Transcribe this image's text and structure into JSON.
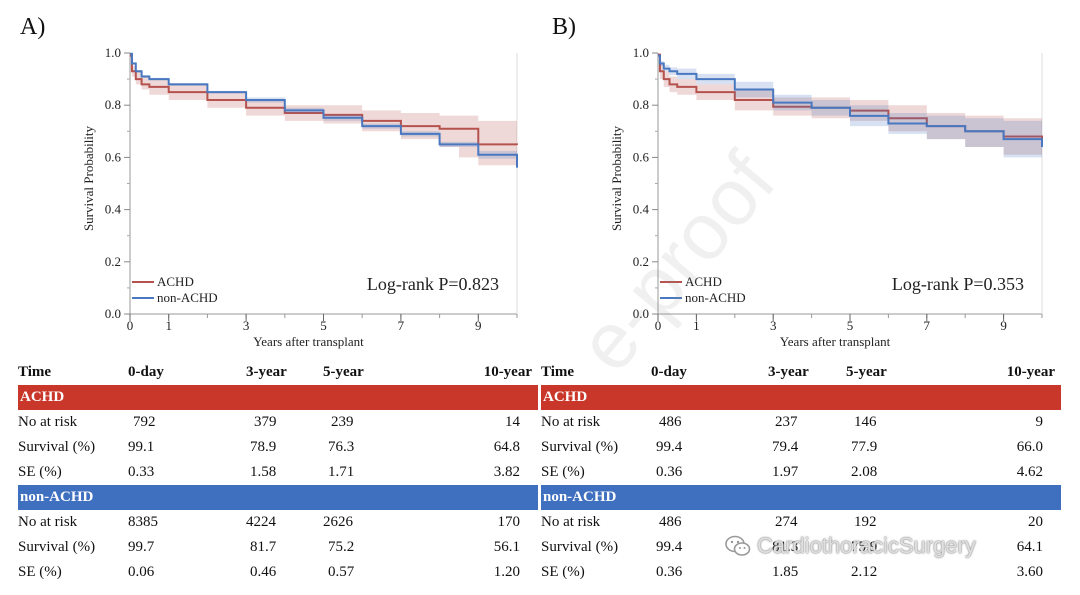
{
  "panels": [
    {
      "label": "A)",
      "chart_data": {
        "type": "line",
        "title": "",
        "xlabel": "Years after transplant",
        "ylabel": "Survival Probability",
        "xlim": [
          0,
          10
        ],
        "ylim": [
          0,
          1.0
        ],
        "xticks": [
          0,
          1,
          3,
          5,
          7,
          9
        ],
        "yticks": [
          0.0,
          0.2,
          0.4,
          0.6,
          0.8,
          1.0
        ],
        "ytick_labels": [
          "0.0",
          "0.2",
          "0.4",
          "0.6",
          "0.8",
          "1.0"
        ],
        "annotation": "Log-rank P=0.823",
        "legend": [
          "ACHD",
          "non-ACHD"
        ],
        "legend_position": "bottom-left",
        "series": [
          {
            "name": "ACHD",
            "color": "#b5524e",
            "x": [
              0,
              0.05,
              0.15,
              0.3,
              0.5,
              1,
              2,
              3,
              4,
              5,
              6,
              7,
              8,
              8.5,
              9,
              10
            ],
            "y": [
              0.99,
              0.93,
              0.9,
              0.88,
              0.87,
              0.85,
              0.82,
              0.79,
              0.77,
              0.763,
              0.74,
              0.72,
              0.71,
              0.71,
              0.65,
              0.648
            ],
            "lower": [
              0.99,
              0.91,
              0.88,
              0.86,
              0.84,
              0.82,
              0.79,
              0.76,
              0.74,
              0.73,
              0.7,
              0.67,
              0.64,
              0.6,
              0.57,
              0.57
            ],
            "upper": [
              0.99,
              0.95,
              0.93,
              0.91,
              0.9,
              0.88,
              0.85,
              0.82,
              0.8,
              0.8,
              0.78,
              0.77,
              0.76,
              0.76,
              0.74,
              0.74
            ]
          },
          {
            "name": "non-ACHD",
            "color": "#4a78c0",
            "x": [
              0,
              0.05,
              0.15,
              0.3,
              0.5,
              1,
              2,
              3,
              4,
              5,
              6,
              7,
              8,
              9,
              10
            ],
            "y": [
              0.997,
              0.96,
              0.93,
              0.91,
              0.9,
              0.88,
              0.85,
              0.82,
              0.78,
              0.752,
              0.72,
              0.69,
              0.65,
              0.61,
              0.561
            ],
            "lower": [
              0.997,
              0.955,
              0.925,
              0.905,
              0.895,
              0.875,
              0.845,
              0.81,
              0.77,
              0.74,
              0.71,
              0.68,
              0.64,
              0.595,
              0.54
            ],
            "upper": [
              0.997,
              0.965,
              0.935,
              0.915,
              0.905,
              0.885,
              0.855,
              0.83,
              0.79,
              0.763,
              0.73,
              0.7,
              0.66,
              0.625,
              0.58
            ]
          }
        ]
      },
      "table": {
        "headers": [
          "Time",
          "0-day",
          "3-year",
          "5-year",
          "10-year"
        ],
        "groups": [
          {
            "name": "ACHD",
            "rows": [
              {
                "label": "No at risk",
                "values": [
                  "792",
                  "379",
                  "239",
                  "14"
                ]
              },
              {
                "label": "Survival (%)",
                "values": [
                  "99.1",
                  "78.9",
                  "76.3",
                  "64.8"
                ]
              },
              {
                "label": "SE (%)",
                "values": [
                  "0.33",
                  "1.58",
                  "1.71",
                  "3.82"
                ]
              }
            ]
          },
          {
            "name": "non-ACHD",
            "rows": [
              {
                "label": "No at risk",
                "values": [
                  "8385",
                  "4224",
                  "2626",
                  "170"
                ]
              },
              {
                "label": "Survival (%)",
                "values": [
                  "99.7",
                  "81.7",
                  "75.2",
                  "56.1"
                ]
              },
              {
                "label": "SE (%)",
                "values": [
                  "0.06",
                  "0.46",
                  "0.57",
                  "1.20"
                ]
              }
            ]
          }
        ]
      }
    },
    {
      "label": "B)",
      "chart_data": {
        "type": "line",
        "title": "",
        "xlabel": "Years after transplant",
        "ylabel": "Survival Probability",
        "xlim": [
          0,
          10
        ],
        "ylim": [
          0,
          1.0
        ],
        "xticks": [
          0,
          1,
          3,
          5,
          7,
          9
        ],
        "yticks": [
          0.0,
          0.2,
          0.4,
          0.6,
          0.8,
          1.0
        ],
        "ytick_labels": [
          "0.0",
          "0.2",
          "0.4",
          "0.6",
          "0.8",
          "1.0"
        ],
        "annotation": "Log-rank P=0.353",
        "legend": [
          "ACHD",
          "non-ACHD"
        ],
        "legend_position": "bottom-left",
        "series": [
          {
            "name": "ACHD",
            "color": "#b5524e",
            "x": [
              0,
              0.05,
              0.15,
              0.3,
              0.5,
              1,
              2,
              3,
              4,
              5,
              6,
              7,
              8,
              9,
              10
            ],
            "y": [
              0.994,
              0.93,
              0.9,
              0.88,
              0.87,
              0.85,
              0.82,
              0.794,
              0.79,
              0.779,
              0.75,
              0.72,
              0.7,
              0.68,
              0.66
            ],
            "lower": [
              0.994,
              0.9,
              0.87,
              0.85,
              0.84,
              0.82,
              0.78,
              0.76,
              0.75,
              0.74,
              0.7,
              0.67,
              0.64,
              0.61,
              0.58
            ],
            "upper": [
              0.994,
              0.96,
              0.93,
              0.91,
              0.9,
              0.88,
              0.86,
              0.83,
              0.83,
              0.82,
              0.8,
              0.77,
              0.76,
              0.75,
              0.74
            ]
          },
          {
            "name": "non-ACHD",
            "color": "#4a78c0",
            "x": [
              0,
              0.05,
              0.15,
              0.3,
              0.5,
              1,
              2,
              3,
              4,
              5,
              6,
              7,
              8,
              9,
              10
            ],
            "y": [
              0.99,
              0.96,
              0.94,
              0.93,
              0.92,
              0.9,
              0.86,
              0.81,
              0.79,
              0.759,
              0.73,
              0.72,
              0.7,
              0.67,
              0.64
            ],
            "lower": [
              0.99,
              0.95,
              0.93,
              0.915,
              0.9,
              0.88,
              0.83,
              0.78,
              0.76,
              0.72,
              0.69,
              0.67,
              0.64,
              0.6,
              0.57
            ],
            "upper": [
              0.99,
              0.97,
              0.955,
              0.945,
              0.94,
              0.92,
              0.89,
              0.84,
              0.82,
              0.8,
              0.77,
              0.76,
              0.75,
              0.74,
              0.73
            ]
          }
        ]
      },
      "table": {
        "headers": [
          "Time",
          "0-day",
          "3-year",
          "5-year",
          "10-year"
        ],
        "groups": [
          {
            "name": "ACHD",
            "rows": [
              {
                "label": "No at risk",
                "values": [
                  "486",
                  "237",
                  "146",
                  "9"
                ]
              },
              {
                "label": "Survival (%)",
                "values": [
                  "99.4",
                  "79.4",
                  "77.9",
                  "66.0"
                ]
              },
              {
                "label": "SE (%)",
                "values": [
                  "0.36",
                  "1.97",
                  "2.08",
                  "4.62"
                ]
              }
            ]
          },
          {
            "name": "non-ACHD",
            "rows": [
              {
                "label": "No at risk",
                "values": [
                  "486",
                  "274",
                  "192",
                  "20"
                ]
              },
              {
                "label": "Survival (%)",
                "values": [
                  "99.4",
                  "81.3",
                  "75.9",
                  "64.1"
                ]
              },
              {
                "label": "SE (%)",
                "values": [
                  "0.36",
                  "1.85",
                  "2.12",
                  "3.60"
                ]
              }
            ]
          }
        ]
      }
    }
  ],
  "watermark": {
    "proof_text": "e-proof",
    "brand_text": "CardiothoracicSurgery",
    "brand_icon": "wechat-icon"
  }
}
